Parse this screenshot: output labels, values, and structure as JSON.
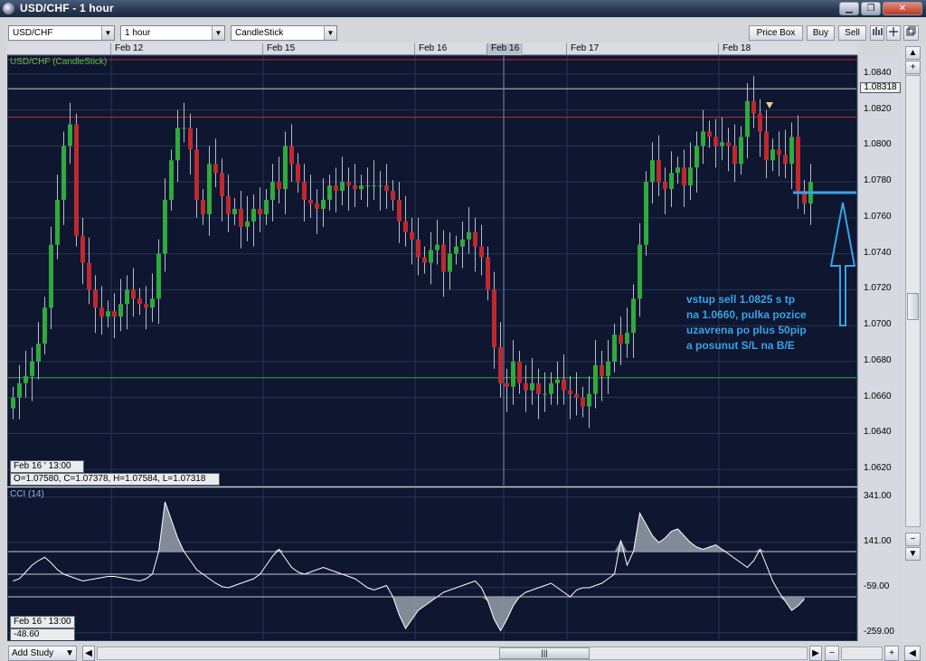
{
  "window": {
    "title": "USD/CHF - 1 hour",
    "controls": {
      "minimize": "▁",
      "restore": "❐",
      "close": "✕"
    }
  },
  "toolbar": {
    "symbol": "USD/CHF",
    "timeframe": "1 hour",
    "chart_type": "CandleStick",
    "price_box_label": "Price Box",
    "buy_label": "Buy",
    "sell_label": "Sell"
  },
  "date_axis": {
    "labels": [
      "Feb 12",
      "Feb 15",
      "Feb 16",
      "Feb 16",
      "Feb 17",
      "Feb 18"
    ]
  },
  "price_panel": {
    "title": "USD/CHF (CandleStick)",
    "price_labels": [
      "1.0840",
      "1.0820",
      "1.0800",
      "1.0780",
      "1.0760",
      "1.0740",
      "1.0720",
      "1.0700",
      "1.0680",
      "1.0660",
      "1.0640",
      "1.0620"
    ],
    "current_price": "1.08318",
    "cursor_date": "Feb 16 ' 13:00",
    "ohlc": "O=1.07580, C=1.07378, H=1.07584, L=1.07318",
    "annotation": "vstup sell 1.0825 s tp\nna 1.0660, pulka pozice\nuzavrena po plus 50pip\na posunut S/L na B/E"
  },
  "cci_panel": {
    "title": "CCI (14)",
    "levels": [
      "341.00",
      "141.00",
      "-59.00",
      "-259.00"
    ],
    "cursor_date": "Feb 16 ' 13:00",
    "cursor_value": "-48.60"
  },
  "bottom": {
    "add_study_label": "Add Study"
  },
  "colors": {
    "background": "#0e1630",
    "grid": "#2a3756",
    "bull": "#2faa3c",
    "bear": "#c0282e",
    "annotation": "#3aa3e6",
    "cci_line": "#ffffff",
    "cci_fill": "#8f97a4"
  },
  "chart_data": {
    "type": "candlestick",
    "title": "USD/CHF (CandleStick)",
    "x_labels": [
      "Feb 12",
      "Feb 15",
      "Feb 16",
      "Feb 17",
      "Feb 18"
    ],
    "ylim": [
      1.061,
      1.085
    ],
    "close": [
      1.066,
      1.0668,
      1.0672,
      1.068,
      1.069,
      1.071,
      1.0745,
      1.077,
      1.08,
      1.0812,
      1.075,
      1.0735,
      1.072,
      1.071,
      1.0705,
      1.0708,
      1.0705,
      1.0712,
      1.072,
      1.0715,
      1.0712,
      1.071,
      1.0715,
      1.074,
      1.077,
      1.0792,
      1.081,
      1.081,
      1.0798,
      1.077,
      1.0762,
      1.079,
      1.0785,
      1.0772,
      1.0762,
      1.0765,
      1.0755,
      1.0758,
      1.0765,
      1.0762,
      1.077,
      1.078,
      1.0776,
      1.08,
      1.079,
      1.078,
      1.077,
      1.0768,
      1.0765,
      1.077,
      1.0778,
      1.0775,
      1.078,
      1.0778,
      1.0776,
      1.0778,
      1.0778,
      1.0778,
      1.0778,
      1.0775,
      1.077,
      1.0758,
      1.0752,
      1.0748,
      1.0738,
      1.0735,
      1.0742,
      1.0745,
      1.073,
      1.074,
      1.0744,
      1.0748,
      1.0752,
      1.0744,
      1.0738,
      1.072,
      1.0688,
      1.0668,
      1.0666,
      1.068,
      1.0668,
      1.0664,
      1.0668,
      1.0662,
      1.0662,
      1.0668,
      1.067,
      1.0664,
      1.0662,
      1.066,
      1.0655,
      1.0662,
      1.0678,
      1.0672,
      1.068,
      1.0695,
      1.069,
      1.0696,
      1.0715,
      1.0745,
      1.078,
      1.0792,
      1.078,
      1.0776,
      1.0785,
      1.0788,
      1.0778,
      1.0788,
      1.08,
      1.0808,
      1.0805,
      1.08,
      1.0802,
      1.08,
      1.079,
      1.0805,
      1.0825,
      1.0818,
      1.0808,
      1.0792,
      1.0798,
      1.0795,
      1.079,
      1.0805,
      1.0775,
      1.0768,
      1.078
    ],
    "cci": [
      -30,
      -20,
      10,
      40,
      60,
      75,
      50,
      20,
      0,
      -10,
      -20,
      -30,
      -25,
      -20,
      -15,
      -10,
      -10,
      -15,
      -20,
      -25,
      -30,
      -20,
      0,
      100,
      320,
      240,
      160,
      100,
      60,
      20,
      0,
      -20,
      -40,
      -55,
      -60,
      -50,
      -40,
      -30,
      -20,
      0,
      40,
      80,
      110,
      70,
      30,
      10,
      0,
      10,
      20,
      30,
      20,
      10,
      0,
      -10,
      -20,
      -40,
      -60,
      -70,
      -60,
      -50,
      -100,
      -180,
      -240,
      -200,
      -160,
      -140,
      -120,
      -100,
      -80,
      -70,
      -60,
      -50,
      -40,
      -30,
      -60,
      -120,
      -200,
      -250,
      -200,
      -140,
      -100,
      -80,
      -70,
      -60,
      -50,
      -40,
      -60,
      -80,
      -100,
      -70,
      -60,
      -60,
      -50,
      -40,
      -20,
      0,
      150,
      40,
      100,
      270,
      220,
      170,
      140,
      160,
      190,
      200,
      170,
      140,
      120,
      110,
      120,
      130,
      110,
      90,
      70,
      50,
      30,
      60,
      110,
      40,
      -30,
      -80,
      -120,
      -160,
      -140,
      -110
    ]
  }
}
